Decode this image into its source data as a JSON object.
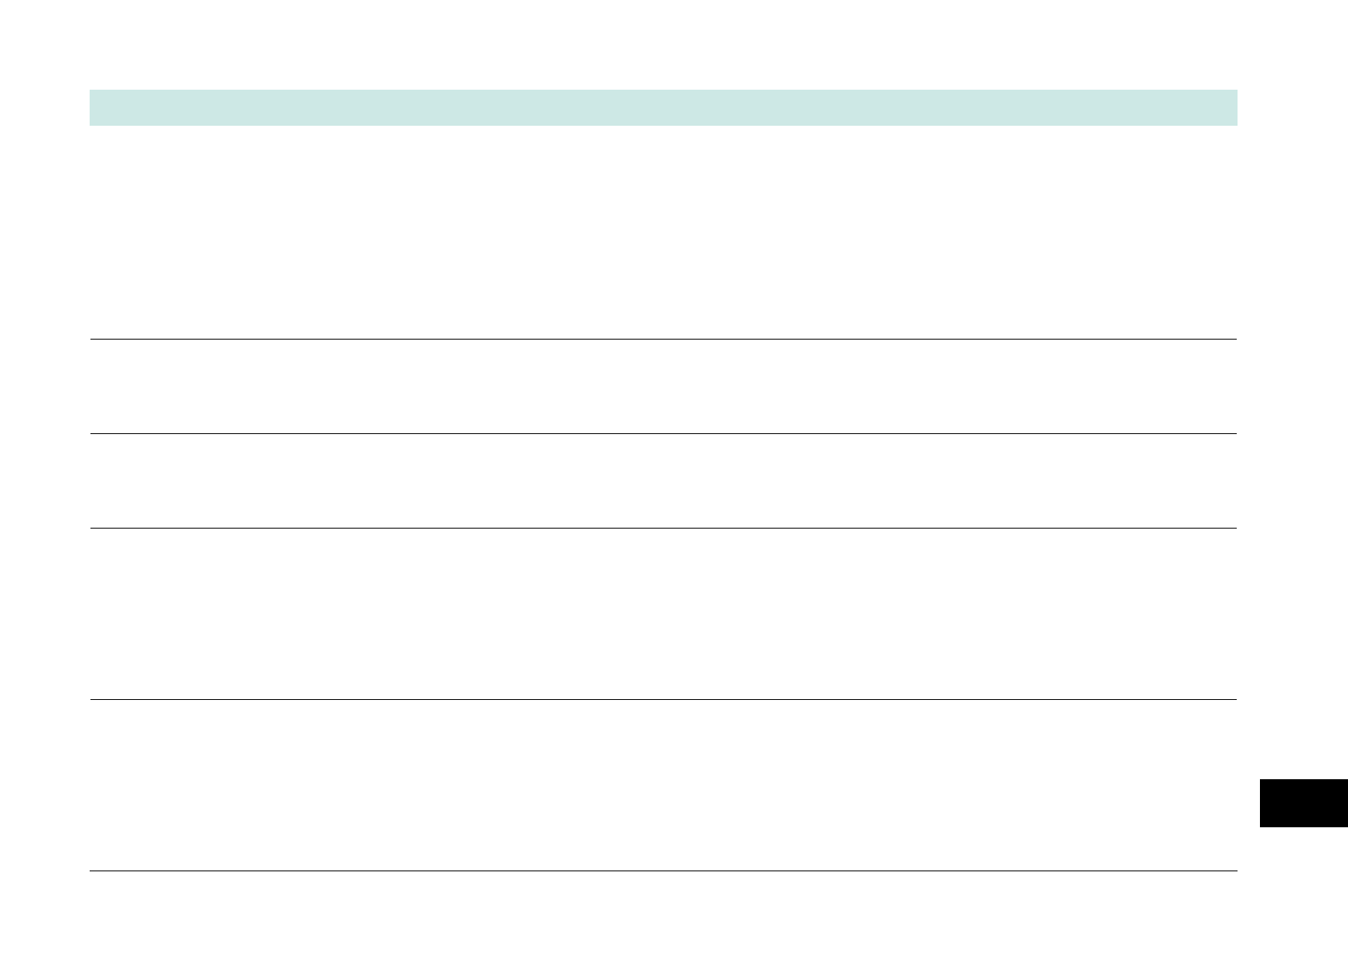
{
  "page": {
    "background_color": "#ffffff",
    "header_band": {
      "color": "#cde8e5"
    },
    "rules": {
      "color": "#000000"
    },
    "side_tab": {
      "color": "#000000",
      "icon": "thumb-index-tab-icon"
    }
  }
}
